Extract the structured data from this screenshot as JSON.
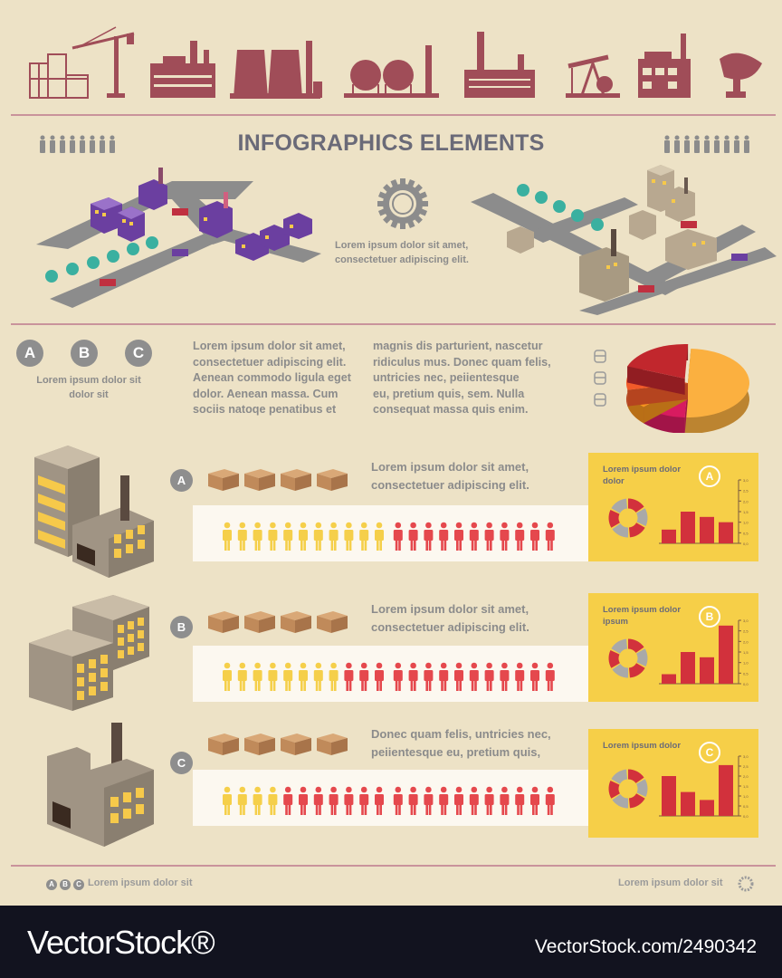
{
  "title": "INFOGRAPHICS ELEMENTS",
  "top_icons": [
    "crane-construction-icon",
    "factory-icon",
    "cooling-towers-icon",
    "gas-tanks-icon",
    "power-plant-icon",
    "oil-pump-icon",
    "industrial-building-icon",
    "satellite-dish-icon"
  ],
  "scene_caption": "Lorem ipsum dolor sit amet,\nconsectetuer adipiscing elit.",
  "legend": {
    "badges": [
      "A",
      "B",
      "C"
    ],
    "caption": "Lorem ipsum dolor sit\ndolor sit"
  },
  "paragraph_1": "Lorem ipsum dolor sit amet,\nconsectetuer adipiscing elit.\nAenean commodo ligula eget\ndolor. Aenean massa. Cum\nsociis natoqe penatibus et",
  "paragraph_2": "magnis dis parturient, nascetur\nridiculus mus. Donec quam felis,\nuntricies nec, peiientesque\neu, pretium quis, sem. Nulla\nconsequat massa quis enim.",
  "pie": {
    "slices": [
      {
        "value": 50,
        "color": "#fbb040"
      },
      {
        "value": 12,
        "color": "#d81b60"
      },
      {
        "value": 9,
        "color": "#f7941d"
      },
      {
        "value": 9,
        "color": "#f15a29"
      },
      {
        "value": 20,
        "color": "#c1272d"
      }
    ]
  },
  "colors": {
    "background": "#ede2c6",
    "accent_red": "#d2313c",
    "accent_yellow": "#f6cf48",
    "people_yellow": "#f5cf4a",
    "people_red": "#e5484d",
    "icon_maroon": "#a04d58"
  },
  "rows": [
    {
      "badge": "A",
      "text": "Lorem ipsum dolor sit amet,\nconsectetuer adipiscing elit.",
      "people_yellow": 11,
      "people_red": 11,
      "panel_title": "Lorem ipsum dolor\ndolor",
      "panel_badge": "A"
    },
    {
      "badge": "B",
      "text": "Lorem ipsum dolor sit amet,\nconsectetuer adipiscing elit.",
      "people_yellow": 8,
      "people_red": 14,
      "panel_title": "Lorem ipsum dolor\nipsum",
      "panel_badge": "B"
    },
    {
      "badge": "C",
      "text": "Donec quam felis, untricies nec,\npeiientesque eu, pretium quis,",
      "people_yellow": 4,
      "people_red": 18,
      "panel_title": "Lorem ipsum dolor",
      "panel_badge": "C"
    }
  ],
  "chart_data": [
    {
      "type": "bar",
      "categories": [
        "1",
        "2",
        "3",
        "4"
      ],
      "values": [
        0.65,
        1.5,
        1.25,
        1.0
      ],
      "ylim": [
        0,
        3.0
      ],
      "yticks": [
        "0,0",
        "0,5",
        "1,0",
        "1,5",
        "2,0",
        "2,5",
        "3,0"
      ]
    },
    {
      "type": "bar",
      "categories": [
        "1",
        "2",
        "3",
        "4"
      ],
      "values": [
        0.45,
        1.5,
        1.25,
        2.75
      ],
      "ylim": [
        0,
        3.0
      ],
      "yticks": [
        "0,0",
        "0,5",
        "1,0",
        "1,5",
        "2,0",
        "2,5",
        "3,0"
      ]
    },
    {
      "type": "bar",
      "categories": [
        "1",
        "2",
        "3",
        "4"
      ],
      "values": [
        2.0,
        1.2,
        0.8,
        2.55
      ],
      "ylim": [
        0,
        3.0
      ],
      "yticks": [
        "0,0",
        "0,5",
        "1,0",
        "1,5",
        "2,0",
        "2,5",
        "3,0"
      ]
    }
  ],
  "footer_left": {
    "badges": [
      "A",
      "B",
      "C"
    ],
    "text": "Lorem ipsum dolor sit"
  },
  "footer_right": {
    "text": "Lorem ipsum dolor sit"
  },
  "watermark": {
    "logo": "VectorStock®",
    "url": "VectorStock.com/2490342"
  }
}
